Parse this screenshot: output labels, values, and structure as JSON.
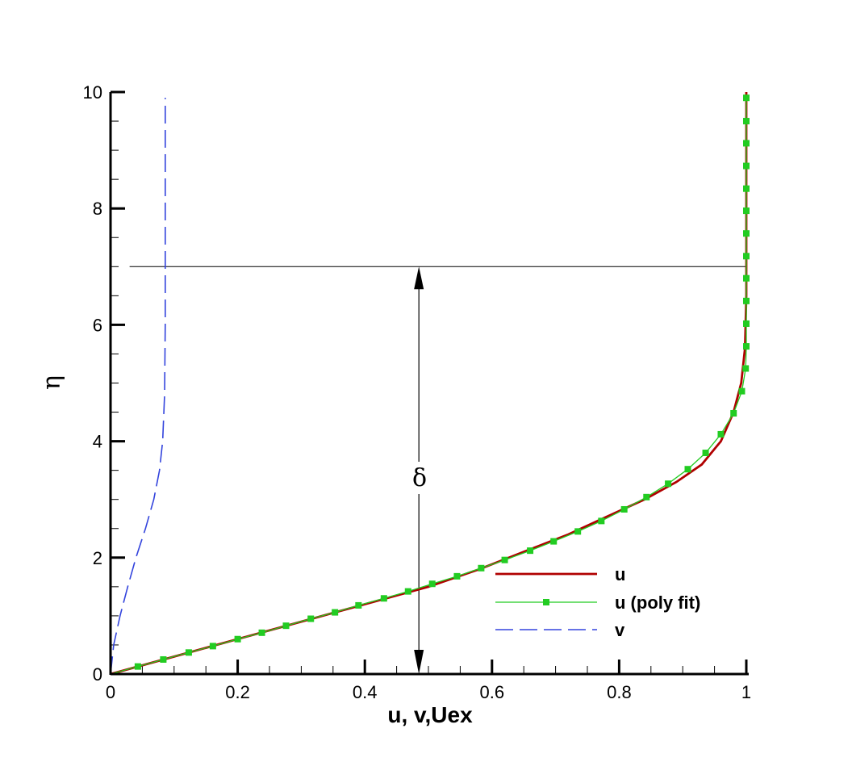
{
  "chart_data": {
    "type": "line",
    "xlabel": "u, v,Uex",
    "ylabel": "η",
    "xlim": [
      0,
      1
    ],
    "ylim": [
      0,
      10
    ],
    "x_ticks": [
      "0",
      "0.2",
      "0.4",
      "0.6",
      "0.8",
      "1"
    ],
    "x_tick_values": [
      0,
      0.2,
      0.4,
      0.6,
      0.8,
      1
    ],
    "y_ticks": [
      "0",
      "2",
      "4",
      "6",
      "8",
      "10"
    ],
    "y_tick_values": [
      0,
      2,
      4,
      6,
      8,
      10
    ],
    "grid": false,
    "legend_position": "bottom-right",
    "series": [
      {
        "name": "u",
        "color": "#b00000",
        "style": "solid",
        "points": [
          [
            0,
            0
          ],
          [
            0.1,
            0.3
          ],
          [
            0.2,
            0.6
          ],
          [
            0.3,
            0.9
          ],
          [
            0.4,
            1.2
          ],
          [
            0.5,
            1.5
          ],
          [
            0.58,
            1.8
          ],
          [
            0.65,
            2.1
          ],
          [
            0.72,
            2.4
          ],
          [
            0.78,
            2.7
          ],
          [
            0.84,
            3.0
          ],
          [
            0.89,
            3.3
          ],
          [
            0.93,
            3.6
          ],
          [
            0.96,
            4.0
          ],
          [
            0.98,
            4.5
          ],
          [
            0.992,
            5.0
          ],
          [
            0.998,
            5.6
          ],
          [
            1.0,
            6.5
          ],
          [
            1.0,
            10.0
          ]
        ]
      },
      {
        "name": "u (poly fit)",
        "color": "#22cc22",
        "style": "solid-markers",
        "points": [
          [
            0,
            0
          ],
          [
            0.043,
            0.13
          ],
          [
            0.083,
            0.25
          ],
          [
            0.123,
            0.37
          ],
          [
            0.161,
            0.48
          ],
          [
            0.2,
            0.6
          ],
          [
            0.238,
            0.71
          ],
          [
            0.276,
            0.83
          ],
          [
            0.315,
            0.95
          ],
          [
            0.353,
            1.06
          ],
          [
            0.39,
            1.18
          ],
          [
            0.43,
            1.3
          ],
          [
            0.468,
            1.42
          ],
          [
            0.506,
            1.55
          ],
          [
            0.545,
            1.68
          ],
          [
            0.583,
            1.82
          ],
          [
            0.62,
            1.96
          ],
          [
            0.66,
            2.12
          ],
          [
            0.697,
            2.28
          ],
          [
            0.735,
            2.45
          ],
          [
            0.772,
            2.63
          ],
          [
            0.808,
            2.83
          ],
          [
            0.843,
            3.04
          ],
          [
            0.877,
            3.27
          ],
          [
            0.908,
            3.52
          ],
          [
            0.936,
            3.8
          ],
          [
            0.96,
            4.12
          ],
          [
            0.98,
            4.48
          ],
          [
            0.993,
            4.86
          ],
          [
            0.999,
            5.25
          ],
          [
            1.0,
            5.63
          ],
          [
            1.0,
            6.02
          ],
          [
            1.0,
            6.41
          ],
          [
            1.0,
            6.8
          ],
          [
            1.0,
            7.18
          ],
          [
            1.0,
            7.57
          ],
          [
            1.0,
            7.96
          ],
          [
            1.0,
            8.34
          ],
          [
            1.0,
            8.73
          ],
          [
            1.0,
            9.12
          ],
          [
            1.0,
            9.5
          ],
          [
            1.0,
            9.9
          ]
        ]
      },
      {
        "name": "v",
        "color": "#3344dd",
        "style": "dashed",
        "points": [
          [
            0,
            0
          ],
          [
            0.005,
            0.5
          ],
          [
            0.015,
            1.0
          ],
          [
            0.027,
            1.5
          ],
          [
            0.04,
            2.0
          ],
          [
            0.055,
            2.5
          ],
          [
            0.068,
            3.0
          ],
          [
            0.077,
            3.5
          ],
          [
            0.082,
            4.0
          ],
          [
            0.085,
            4.8
          ],
          [
            0.086,
            6.0
          ],
          [
            0.086,
            8.0
          ],
          [
            0.086,
            9.9
          ]
        ]
      }
    ],
    "annotations": {
      "delta_symbol": "δ",
      "reference_line_y": 7.0,
      "reference_line_xlim": [
        0.03,
        1.0
      ],
      "arrow_x": 0.485,
      "arrow_ylim": [
        0,
        7
      ]
    }
  }
}
